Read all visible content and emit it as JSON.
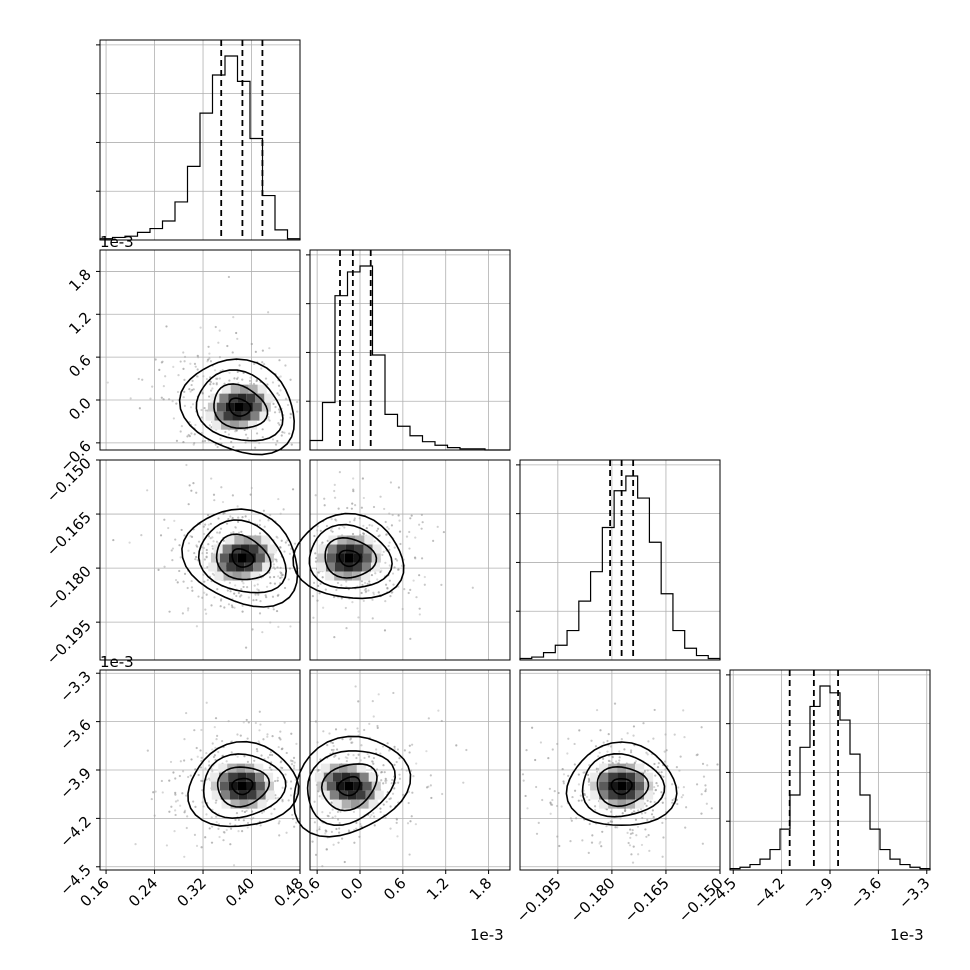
{
  "chart_data": {
    "type": "corner",
    "params": 4,
    "offset_label": "1e-3",
    "parameters": [
      {
        "index": 0,
        "x_ticks": [
          "0.16",
          "0.24",
          "0.32",
          "0.40",
          "0.48"
        ],
        "range": [
          0.15,
          0.48
        ],
        "quantiles": [
          0.35,
          0.385,
          0.418
        ]
      },
      {
        "index": 1,
        "x_ticks": [
          "−0.6",
          "0.0",
          "0.6",
          "1.2",
          "1.8"
        ],
        "y_ticks": [
          "1.8",
          "1.2",
          "0.6",
          "0.0",
          "−0.6"
        ],
        "range": [
          -0.7,
          2.1
        ],
        "quantiles": [
          -0.28,
          -0.1,
          0.15
        ]
      },
      {
        "index": 2,
        "x_ticks": [
          "−0.195",
          "−0.180",
          "−0.165",
          "−0.150"
        ],
        "y_ticks": [
          "−0.150",
          "−0.165",
          "−0.180",
          "−0.195"
        ],
        "range": [
          -0.2055,
          -0.15
        ],
        "quantiles": [
          -0.1805,
          -0.1773,
          -0.1741
        ]
      },
      {
        "index": 3,
        "x_ticks": [
          "−4.5",
          "−4.2",
          "−3.9",
          "−3.6",
          "−3.3"
        ],
        "y_ticks": [
          "−3.3",
          "−3.6",
          "−3.9",
          "−4.2",
          "−4.5"
        ],
        "range": [
          -4.52,
          -3.28
        ],
        "quantiles": [
          -4.15,
          -4.0,
          -3.85
        ]
      }
    ],
    "histograms": [
      {
        "param": 0,
        "counts": [
          1,
          2,
          3,
          6,
          9,
          15,
          30,
          58,
          100,
          130,
          145,
          125,
          80,
          35,
          8,
          1
        ]
      },
      {
        "param": 1,
        "counts": [
          8,
          40,
          130,
          150,
          155,
          80,
          30,
          20,
          12,
          7,
          4,
          2,
          1,
          1,
          0,
          0
        ]
      },
      {
        "param": 2,
        "counts": [
          1,
          2,
          5,
          10,
          20,
          40,
          60,
          90,
          115,
          125,
          110,
          80,
          45,
          20,
          8,
          3,
          1
        ]
      },
      {
        "param": 3,
        "counts": [
          1,
          2,
          4,
          8,
          15,
          30,
          55,
          90,
          120,
          135,
          130,
          110,
          85,
          55,
          30,
          15,
          8,
          4,
          2,
          1
        ]
      }
    ],
    "pairs": [
      {
        "x": 0,
        "y": 1,
        "center": [
          0.38,
          -0.1
        ],
        "tilt": -0.45
      },
      {
        "x": 0,
        "y": 2,
        "center": [
          0.385,
          -0.1772
        ],
        "tilt": -0.5
      },
      {
        "x": 1,
        "y": 2,
        "center": [
          -0.15,
          -0.1772
        ],
        "tilt": -0.15
      },
      {
        "x": 0,
        "y": 3,
        "center": [
          0.385,
          -4.0
        ],
        "tilt": 0.15
      },
      {
        "x": 1,
        "y": 3,
        "center": [
          -0.15,
          -4.0
        ],
        "tilt": 0.55
      },
      {
        "x": 2,
        "y": 3,
        "center": [
          -0.1773,
          -4.0
        ],
        "tilt": 0.0
      }
    ]
  }
}
